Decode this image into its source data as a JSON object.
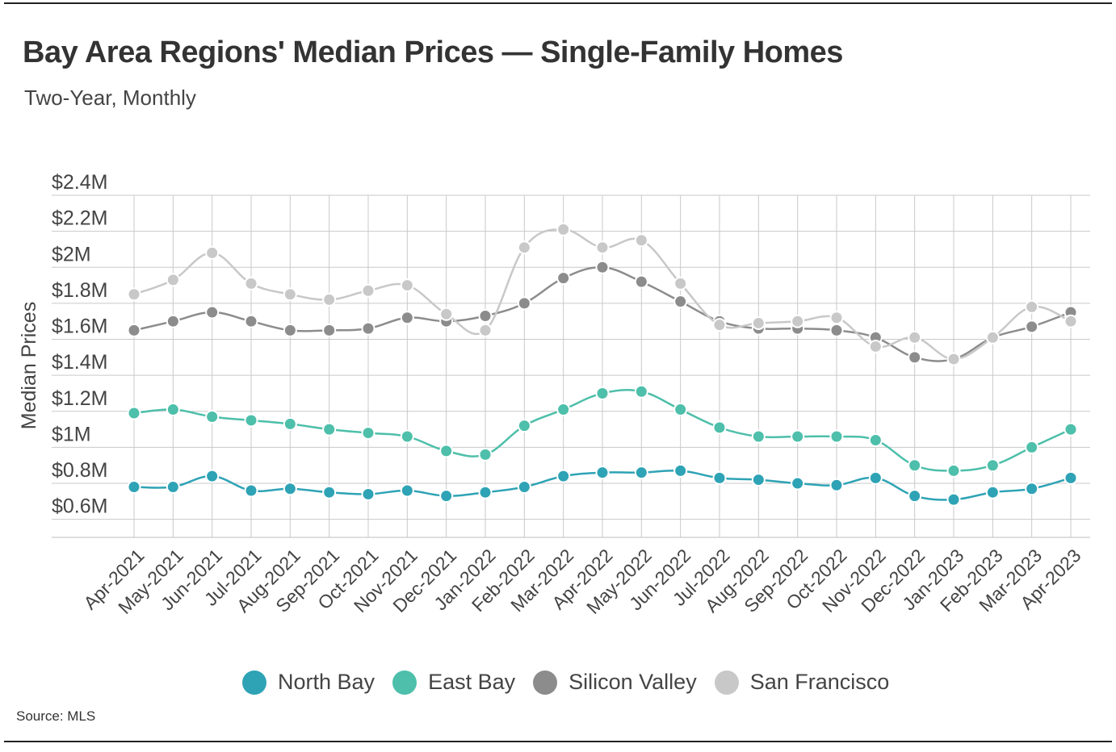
{
  "title": "Bay Area Regions' Median Prices — Single-Family Homes",
  "subtitle": "Two-Year, Monthly",
  "source": "Source:  MLS",
  "chart_data": {
    "type": "line",
    "title": "Bay Area Regions' Median Prices — Single-Family Homes",
    "subtitle": "Two-Year, Monthly",
    "xlabel": "",
    "ylabel": "Median Prices",
    "ylim": [
      0.5,
      2.4
    ],
    "yticks": [
      0.6,
      0.8,
      1.0,
      1.2,
      1.4,
      1.6,
      1.8,
      2.0,
      2.2,
      2.4
    ],
    "ytick_labels": [
      "$0.6M",
      "$0.8M",
      "$1M",
      "$1.2M",
      "$1.4M",
      "$1.6M",
      "$1.8M",
      "$2M",
      "$2.2M",
      "$2.4M"
    ],
    "grid": true,
    "legend_position": "bottom-center",
    "categories": [
      "Apr-2021",
      "May-2021",
      "Jun-2021",
      "Jul-2021",
      "Aug-2021",
      "Sep-2021",
      "Oct-2021",
      "Nov-2021",
      "Dec-2021",
      "Jan-2022",
      "Feb-2022",
      "Mar-2022",
      "Apr-2022",
      "May-2022",
      "Jun-2022",
      "Jul-2022",
      "Aug-2022",
      "Sep-2022",
      "Oct-2022",
      "Nov-2022",
      "Dec-2022",
      "Jan-2023",
      "Feb-2023",
      "Mar-2023",
      "Apr-2023"
    ],
    "series": [
      {
        "name": "North Bay",
        "color": "#2ea3b5",
        "values": [
          0.78,
          0.78,
          0.84,
          0.76,
          0.77,
          0.75,
          0.74,
          0.76,
          0.73,
          0.75,
          0.78,
          0.84,
          0.86,
          0.86,
          0.87,
          0.83,
          0.82,
          0.8,
          0.79,
          0.83,
          0.73,
          0.71,
          0.75,
          0.77,
          0.83
        ]
      },
      {
        "name": "East Bay",
        "color": "#4dbfaa",
        "values": [
          1.19,
          1.21,
          1.17,
          1.15,
          1.13,
          1.1,
          1.08,
          1.06,
          0.98,
          0.96,
          1.12,
          1.21,
          1.3,
          1.31,
          1.21,
          1.11,
          1.06,
          1.06,
          1.06,
          1.04,
          0.9,
          0.87,
          0.9,
          1.0,
          1.1
        ]
      },
      {
        "name": "Silicon Valley",
        "color": "#8c8c8c",
        "values": [
          1.65,
          1.7,
          1.75,
          1.7,
          1.65,
          1.65,
          1.66,
          1.72,
          1.7,
          1.73,
          1.8,
          1.94,
          2.0,
          1.92,
          1.81,
          1.7,
          1.66,
          1.66,
          1.65,
          1.61,
          1.5,
          1.49,
          1.61,
          1.67,
          1.75
        ]
      },
      {
        "name": "San Francisco",
        "color": "#c8c8c8",
        "values": [
          1.85,
          1.93,
          2.08,
          1.91,
          1.85,
          1.82,
          1.87,
          1.9,
          1.74,
          1.65,
          2.11,
          2.21,
          2.11,
          2.15,
          1.91,
          1.68,
          1.69,
          1.7,
          1.72,
          1.56,
          1.61,
          1.49,
          1.61,
          1.78,
          1.7
        ]
      }
    ]
  }
}
